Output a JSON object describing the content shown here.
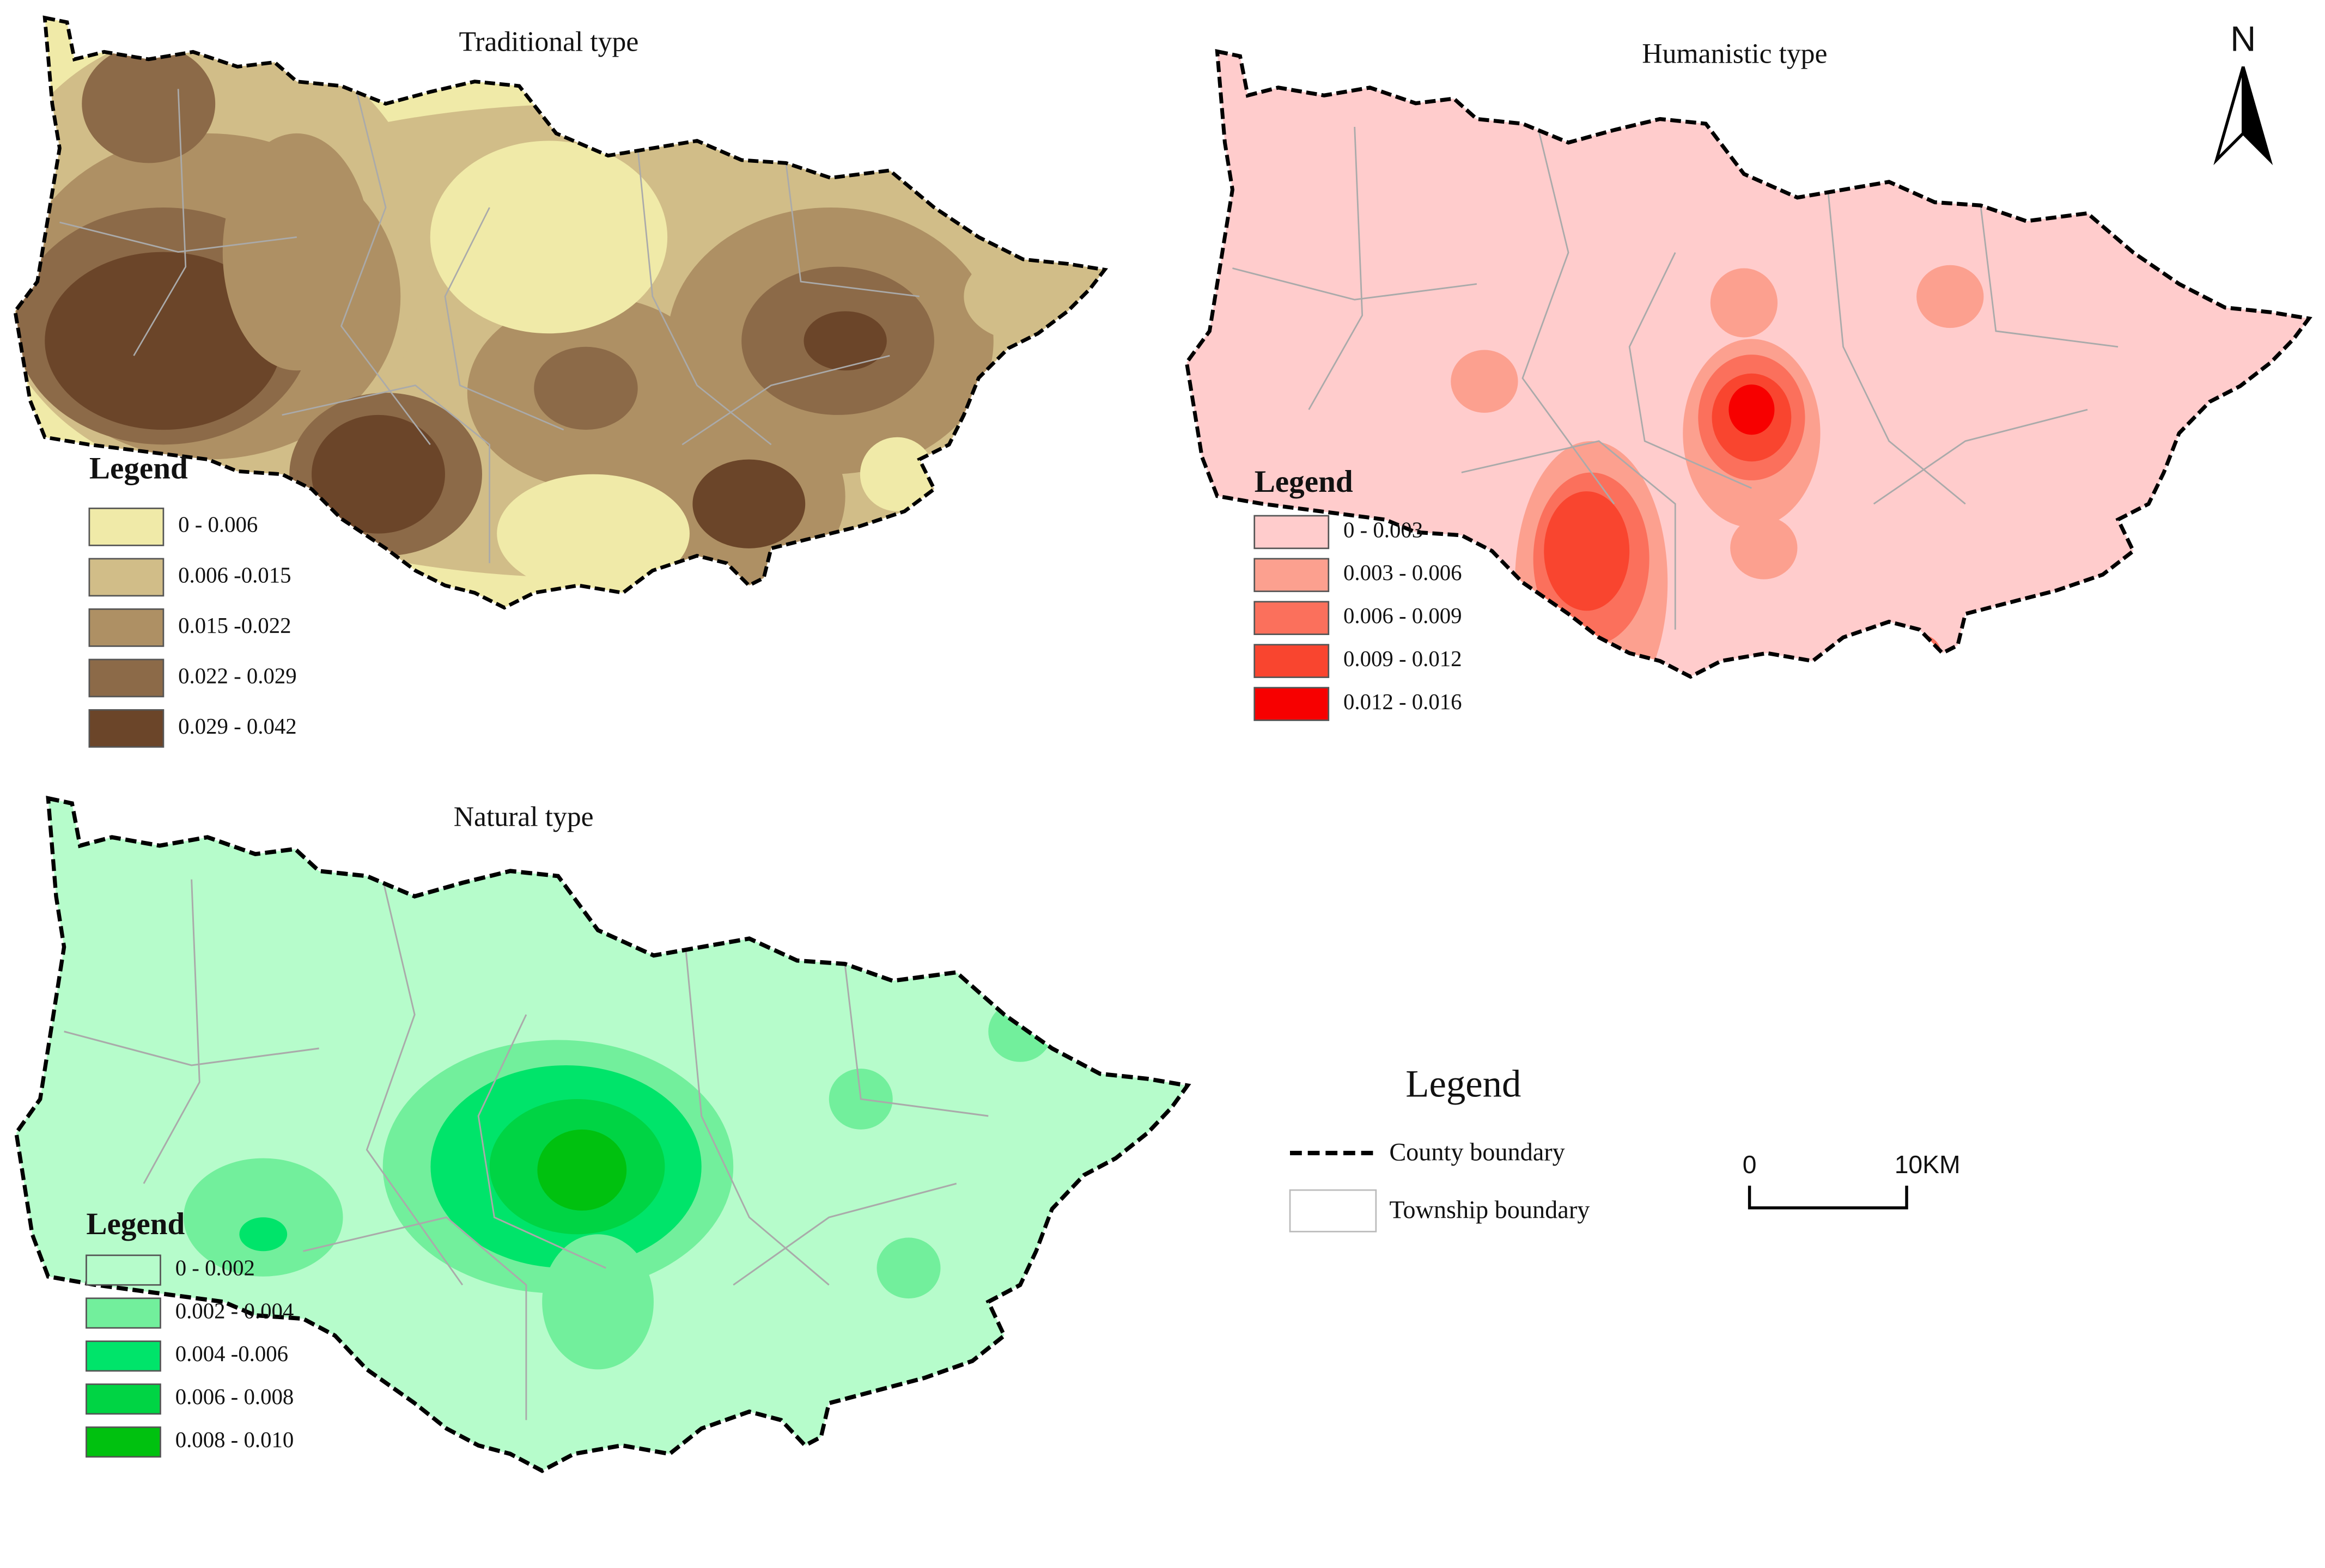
{
  "maps": [
    {
      "title": "Traditional type",
      "legend_title": "Legend",
      "legend": [
        {
          "label": "0 - 0.006",
          "color": "#f0eaa8"
        },
        {
          "label": "0.006 -0.015",
          "color": "#d1bd88"
        },
        {
          "label": "0.015 -0.022",
          "color": "#ae9064"
        },
        {
          "label": "0.022 - 0.029",
          "color": "#8c6a48"
        },
        {
          "label": "0.029 - 0.042",
          "color": "#6b4529"
        }
      ]
    },
    {
      "title": "Humanistic type",
      "legend_title": "Legend",
      "legend": [
        {
          "label": "0 - 0.003",
          "color": "#ffcccc"
        },
        {
          "label": "0.003 - 0.006",
          "color": "#fca08f"
        },
        {
          "label": "0.006 - 0.009",
          "color": "#fb705c"
        },
        {
          "label": "0.009 - 0.012",
          "color": "#f9452f"
        },
        {
          "label": "0.012 - 0.016",
          "color": "#f70000"
        }
      ]
    },
    {
      "title": "Natural type",
      "legend_title": "Legend",
      "legend": [
        {
          "label": "0 - 0.002",
          "color": "#b6fccb"
        },
        {
          "label": "0.002 - 0.004",
          "color": "#72ef9c"
        },
        {
          "label": "0.004 -0.006",
          "color": "#00e46a"
        },
        {
          "label": "0.006 - 0.008",
          "color": "#00d444"
        },
        {
          "label": "0.008 - 0.010",
          "color": "#00c10f"
        }
      ]
    }
  ],
  "north": "N",
  "legend": {
    "title": "Legend",
    "items": [
      {
        "label": "County boundary"
      },
      {
        "label": "Township boundary"
      }
    ]
  },
  "scale_bar": {
    "start": "0",
    "end": "10KM"
  }
}
